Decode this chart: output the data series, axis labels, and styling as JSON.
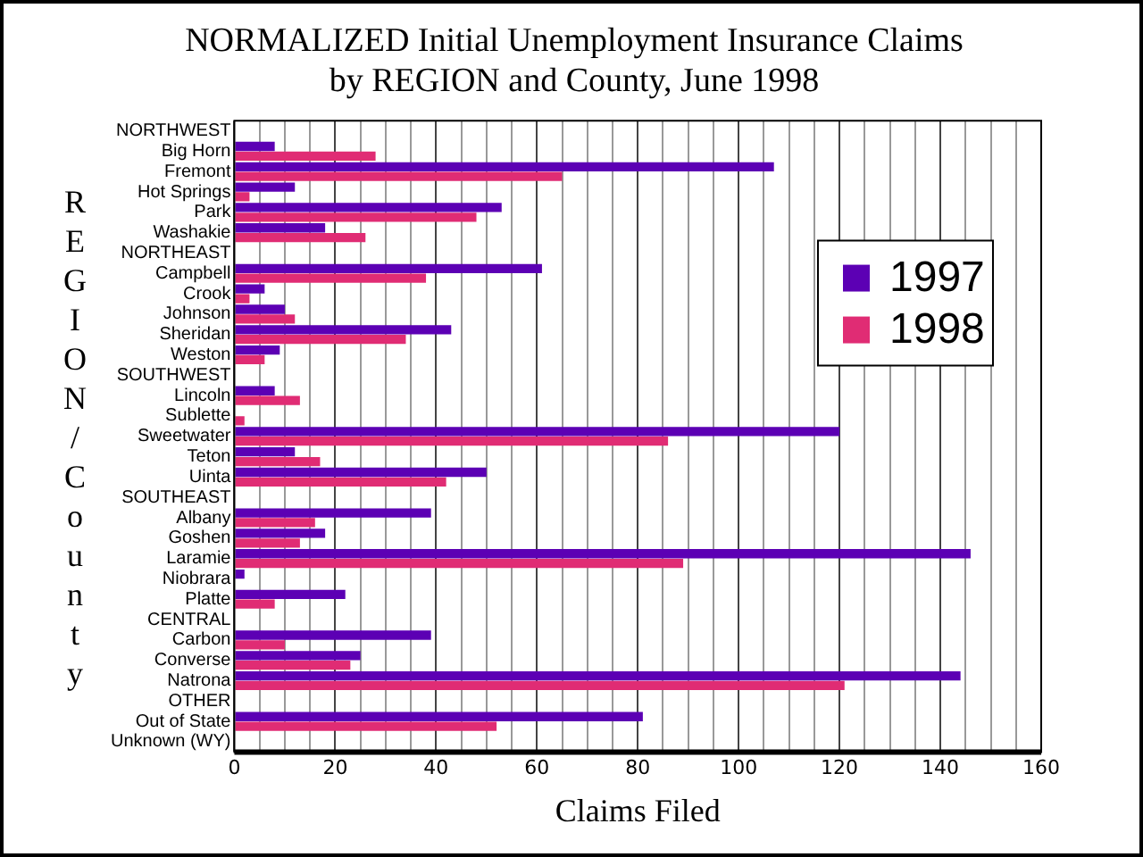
{
  "chart_data": {
    "type": "bar",
    "orientation": "horizontal",
    "title": "NORMALIZED Initial Unemployment Insurance Claims\nby REGION and County, June 1998",
    "xlabel": "Claims Filed",
    "ylabel": "REGION/County",
    "categories": [
      "NORTHWEST",
      "Big Horn",
      "Fremont",
      "Hot Springs",
      "Park",
      "Washakie",
      "NORTHEAST",
      "Campbell",
      "Crook",
      "Johnson",
      "Sheridan",
      "Weston",
      "SOUTHWEST",
      "Lincoln",
      "Sublette",
      "Sweetwater",
      "Teton",
      "Uinta",
      "SOUTHEAST",
      "Albany",
      "Goshen",
      "Laramie",
      "Niobrara",
      "Platte",
      "CENTRAL",
      "Carbon",
      "Converse",
      "Natrona",
      "OTHER",
      "Out of State",
      "Unknown (WY)"
    ],
    "series": [
      {
        "name": "1997",
        "color": "#5c00b4",
        "values": [
          null,
          8,
          107,
          12,
          53,
          18,
          null,
          61,
          6,
          10,
          43,
          9,
          null,
          8,
          0,
          120,
          12,
          50,
          null,
          39,
          18,
          146,
          2,
          22,
          null,
          39,
          25,
          144,
          null,
          81,
          0
        ]
      },
      {
        "name": "1998",
        "color": "#e02c74",
        "values": [
          null,
          28,
          65,
          3,
          48,
          26,
          null,
          38,
          3,
          12,
          34,
          6,
          null,
          13,
          2,
          86,
          17,
          42,
          null,
          16,
          13,
          89,
          0,
          8,
          null,
          10,
          23,
          121,
          null,
          52,
          0
        ]
      }
    ],
    "xlim": [
      0,
      160
    ],
    "xticks": [
      0,
      {
        "value": 5,
        "label": null
      },
      {
        "value": 10,
        "label": null
      },
      {
        "value": 15,
        "label": null
      },
      20,
      {
        "value": 25,
        "label": null
      },
      {
        "value": 30,
        "label": null
      },
      {
        "value": 35,
        "label": null
      },
      40,
      {
        "value": 45,
        "label": null
      },
      {
        "value": 50,
        "label": null
      },
      {
        "value": 55,
        "label": null
      },
      60,
      {
        "value": 65,
        "label": null
      },
      {
        "value": 70,
        "label": null
      },
      {
        "value": 75,
        "label": null
      },
      80,
      {
        "value": 85,
        "label": null
      },
      {
        "value": 90,
        "label": null
      },
      {
        "value": 95,
        "label": null
      },
      100,
      {
        "value": 105,
        "label": null
      },
      {
        "value": 110,
        "label": null
      },
      {
        "value": 115,
        "label": null
      },
      120,
      {
        "value": 125,
        "label": null
      },
      {
        "value": 130,
        "label": null
      },
      {
        "value": 135,
        "label": null
      },
      140,
      {
        "value": 145,
        "label": null
      },
      {
        "value": 150,
        "label": null
      },
      {
        "value": 155,
        "label": null
      },
      160
    ],
    "grid": "x",
    "legend": "right"
  }
}
